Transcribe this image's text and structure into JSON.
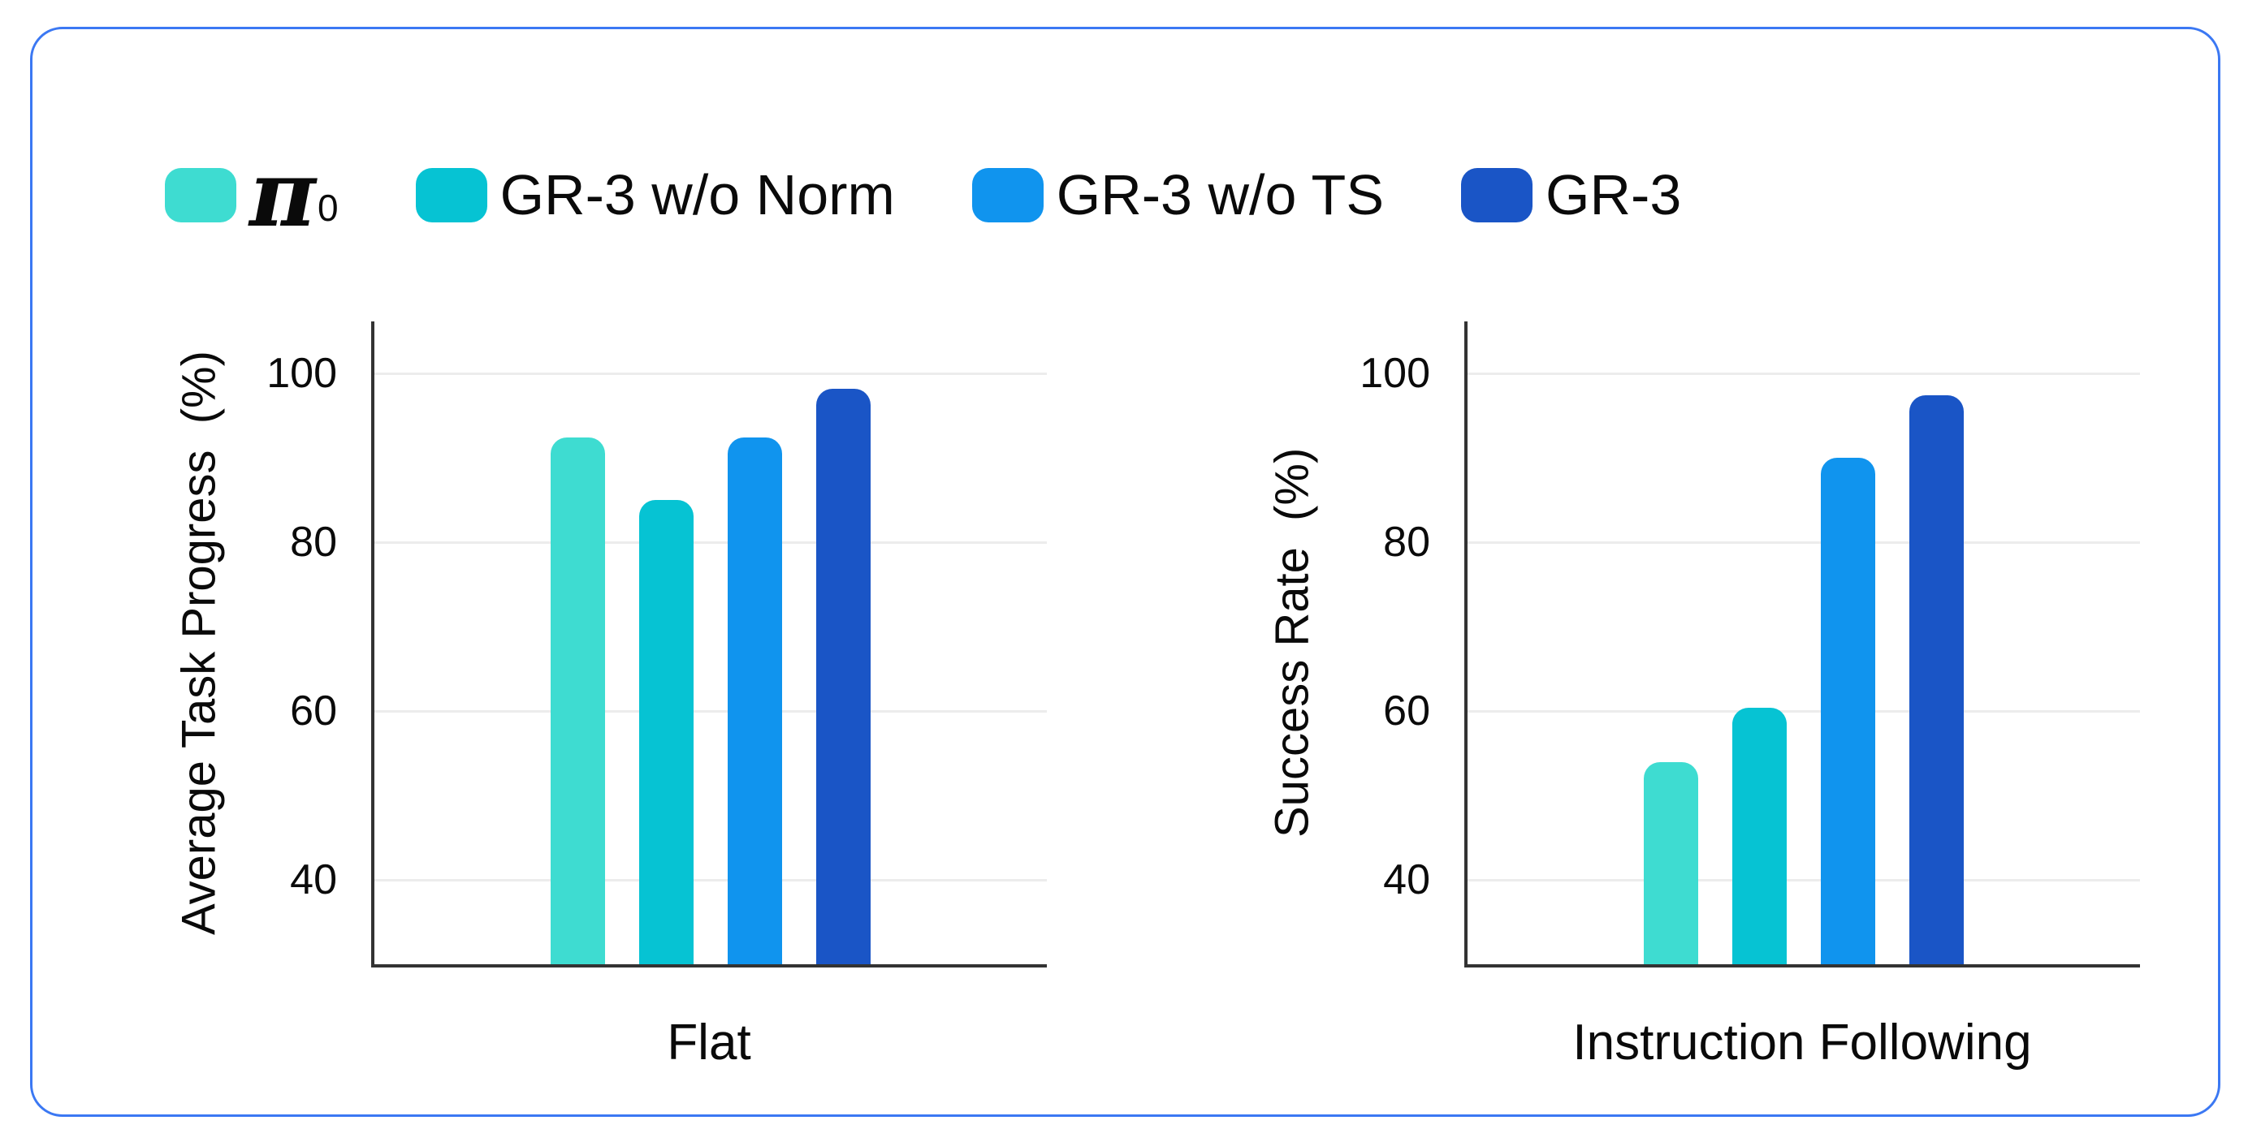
{
  "card": {
    "border_color": "#3B78F3"
  },
  "legend": {
    "items": [
      {
        "label": "π0",
        "symbol": "π",
        "subscript": "0",
        "color": "#3EDCD1"
      },
      {
        "label": "GR-3 w/o Norm",
        "color": "#06C3D3"
      },
      {
        "label": "GR-3 w/o TS",
        "color": "#1094EE"
      },
      {
        "label": "GR-3",
        "color": "#1A55C6"
      }
    ]
  },
  "colors": {
    "axis": "#333333",
    "gridline": "#ECECEC",
    "text": "#0a0a0a"
  },
  "chart_data": [
    {
      "type": "bar",
      "title": "",
      "categories": [
        "Flat"
      ],
      "xlabel": "Flat",
      "ylabel": "Average Task Progress  (%)",
      "yticks": [
        40,
        60,
        80,
        100
      ],
      "ylim": [
        30,
        106.2
      ],
      "grid": true,
      "legend_position": "top",
      "series": [
        {
          "name": "π0",
          "values": [
            92.4
          ],
          "color": "#3EDCD1"
        },
        {
          "name": "GR-3 w/o Norm",
          "values": [
            85.0
          ],
          "color": "#06C3D3"
        },
        {
          "name": "GR-3 w/o TS",
          "values": [
            92.4
          ],
          "color": "#1094EE"
        },
        {
          "name": "GR-3",
          "values": [
            98.2
          ],
          "color": "#1A55C6"
        }
      ]
    },
    {
      "type": "bar",
      "title": "",
      "categories": [
        "Instruction Following"
      ],
      "xlabel": "Instruction Following",
      "ylabel": "Success Rate  (%)",
      "yticks": [
        40,
        60,
        80,
        100
      ],
      "ylim": [
        30,
        106.2
      ],
      "grid": true,
      "legend_position": "top",
      "series": [
        {
          "name": "π0",
          "values": [
            54.0
          ],
          "color": "#3EDCD1"
        },
        {
          "name": "GR-3 w/o Norm",
          "values": [
            60.4
          ],
          "color": "#06C3D3"
        },
        {
          "name": "GR-3 w/o TS",
          "values": [
            90.0
          ],
          "color": "#1094EE"
        },
        {
          "name": "GR-3",
          "values": [
            97.4
          ],
          "color": "#1A55C6"
        }
      ]
    }
  ]
}
